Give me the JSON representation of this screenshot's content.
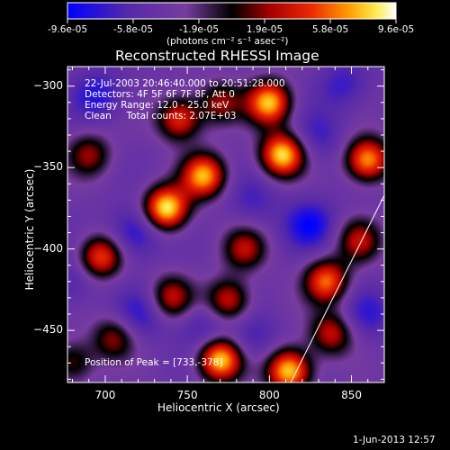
{
  "colorbar": {
    "ticks": [
      "-9.6e-05",
      "-5.8e-05",
      "-1.9e-05",
      "1.9e-05",
      "5.8e-05",
      "9.6e-05"
    ],
    "unit_label": "(photons cm⁻² s⁻¹ asec⁻²)"
  },
  "chart_data": {
    "type": "heatmap",
    "title": "Reconstructed RHESSI Image",
    "xlabel": "Heliocentric X (arcsec)",
    "ylabel": "Heliocentric Y (arcsec)",
    "xlim": [
      677,
      870
    ],
    "ylim": [
      -482,
      -288
    ],
    "x_ticks": [
      700,
      750,
      800,
      850
    ],
    "y_ticks": [
      -300,
      -350,
      -400,
      -450
    ],
    "color_range": [
      -9.6e-05,
      9.6e-05
    ],
    "colormap": "blue-purple-black-red-orange-yellow-white",
    "hotspots": [
      {
        "x": 737,
        "y": -375,
        "amp": 1.0
      },
      {
        "x": 770,
        "y": -468,
        "amp": 0.95
      },
      {
        "x": 800,
        "y": -310,
        "amp": 0.9
      },
      {
        "x": 808,
        "y": -342,
        "amp": 0.95
      },
      {
        "x": 760,
        "y": -355,
        "amp": 0.85
      },
      {
        "x": 745,
        "y": -320,
        "amp": 0.65
      },
      {
        "x": 812,
        "y": -475,
        "amp": 0.95
      },
      {
        "x": 860,
        "y": -345,
        "amp": 0.85
      },
      {
        "x": 835,
        "y": -420,
        "amp": 0.75
      },
      {
        "x": 697,
        "y": -405,
        "amp": 0.7
      },
      {
        "x": 690,
        "y": -342,
        "amp": 0.45
      },
      {
        "x": 740,
        "y": -430,
        "amp": 0.55
      },
      {
        "x": 775,
        "y": -432,
        "amp": 0.6
      },
      {
        "x": 785,
        "y": -400,
        "amp": 0.5
      },
      {
        "x": 838,
        "y": -452,
        "amp": 0.55
      },
      {
        "x": 705,
        "y": -455,
        "amp": 0.45
      },
      {
        "x": 855,
        "y": -395,
        "amp": 0.5
      },
      {
        "x": 770,
        "y": -310,
        "amp": 0.45
      },
      {
        "x": 680,
        "y": -470,
        "amp": 0.4
      }
    ],
    "coldspots": [
      {
        "x": 695,
        "y": -305,
        "amp": 0.6
      },
      {
        "x": 718,
        "y": -390,
        "amp": 0.7
      },
      {
        "x": 845,
        "y": -300,
        "amp": 0.5
      },
      {
        "x": 825,
        "y": -385,
        "amp": 0.75
      },
      {
        "x": 722,
        "y": -440,
        "amp": 0.55
      },
      {
        "x": 760,
        "y": -448,
        "amp": 0.5
      },
      {
        "x": 790,
        "y": -455,
        "amp": 0.45
      },
      {
        "x": 830,
        "y": -330,
        "amp": 0.45
      },
      {
        "x": 860,
        "y": -440,
        "amp": 0.5
      },
      {
        "x": 680,
        "y": -420,
        "amp": 0.4
      },
      {
        "x": 790,
        "y": -370,
        "amp": 0.4
      }
    ],
    "limb_line": [
      {
        "x": 813,
        "y": -482
      },
      {
        "x": 870,
        "y": -367
      }
    ]
  },
  "annotations": {
    "line1": "22-Jul-2003 20:46:40.000 to 20:51:28.000",
    "line2": "Detectors: 4F 5F 6F 7F 8F, Att 0",
    "line3": "Energy Range: 12.0 - 25.0 keV",
    "line4": "Clean     Total counts: 2.07E+03",
    "peak": "Position of Peak = [733,-378]"
  },
  "footer": {
    "date": "1-Jun-2013 12:57"
  }
}
